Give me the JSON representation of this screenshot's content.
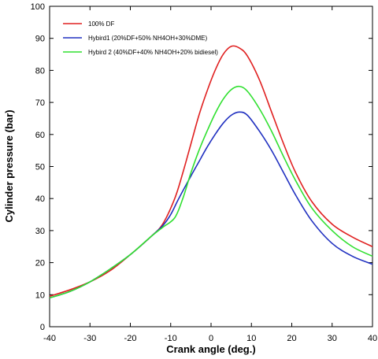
{
  "chart_data": {
    "type": "line",
    "title": "",
    "xlabel": "Crank angle (deg.)",
    "ylabel": "Cylinder pressure (bar)",
    "xlim": [
      -40,
      40
    ],
    "ylim": [
      0,
      100
    ],
    "xticks": [
      -40,
      -30,
      -20,
      -10,
      0,
      10,
      20,
      30,
      40
    ],
    "yticks": [
      0,
      10,
      20,
      30,
      40,
      50,
      60,
      70,
      80,
      90,
      100
    ],
    "grid": false,
    "legend_position": "top-left",
    "series": [
      {
        "name": "100% DF",
        "color": "#e02020",
        "x": [
          -40,
          -35,
          -30,
          -25,
          -20,
          -15,
          -12,
          -9,
          -7,
          -5,
          -3,
          -1,
          1,
          3,
          5,
          7,
          9,
          12,
          15,
          18,
          21,
          25,
          30,
          35,
          40
        ],
        "y": [
          9.5,
          11.5,
          14,
          17.5,
          22.5,
          28,
          32,
          40,
          48,
          57,
          66,
          73.5,
          80,
          85,
          87.5,
          87,
          84.5,
          77,
          67,
          57,
          48,
          39,
          32,
          28,
          25
        ]
      },
      {
        "name": "Hybird1 (20%DF+50% NH4OH+30%DME)",
        "color": "#2030c0",
        "x": [
          -40,
          -35,
          -30,
          -25,
          -20,
          -15,
          -12,
          -10,
          -8,
          -5,
          -3,
          -1,
          1,
          3,
          5,
          7,
          9,
          12,
          15,
          18,
          21,
          25,
          30,
          35,
          40
        ],
        "y": [
          9,
          11,
          14,
          18,
          22.5,
          28,
          31.5,
          35,
          40,
          47,
          51.5,
          56,
          60,
          63.5,
          66,
          67,
          66,
          61,
          55,
          48,
          41,
          33,
          26,
          22,
          19.5
        ]
      },
      {
        "name": "Hybird 2 (40%DF+40% NH4OH+20% bidiesel)",
        "color": "#30e030",
        "x": [
          -40,
          -35,
          -30,
          -25,
          -20,
          -15,
          -12,
          -9,
          -7,
          -5,
          -3,
          -1,
          1,
          3,
          5,
          7,
          9,
          12,
          15,
          18,
          21,
          25,
          30,
          35,
          40
        ],
        "y": [
          9,
          11,
          14,
          18,
          22.5,
          28,
          31,
          34,
          40,
          48,
          55,
          61,
          66.5,
          71,
          74,
          75,
          73.5,
          68,
          61,
          53,
          45.5,
          37,
          30,
          25,
          22
        ]
      }
    ]
  }
}
